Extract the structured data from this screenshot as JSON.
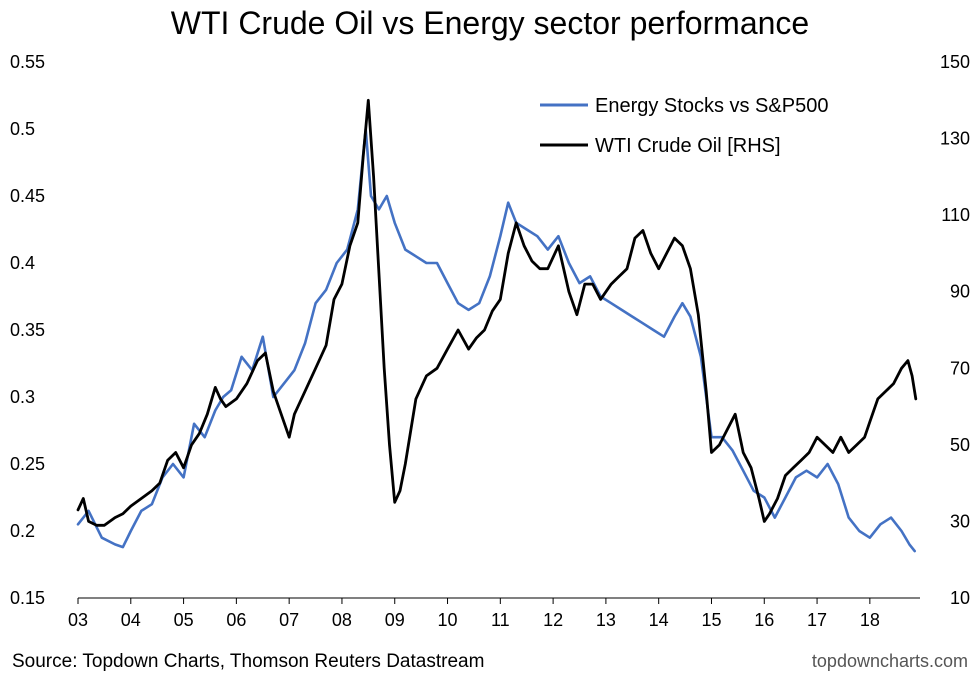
{
  "chart_data": {
    "type": "line",
    "title": "WTI Crude Oil vs Energy sector performance",
    "xlabel": "",
    "ylabel": "",
    "x_ticks": [
      "03",
      "04",
      "05",
      "06",
      "07",
      "08",
      "09",
      "10",
      "11",
      "12",
      "13",
      "14",
      "15",
      "16",
      "17",
      "18"
    ],
    "xlim": [
      2003.0,
      2018.95
    ],
    "ylim_left": [
      0.15,
      0.55
    ],
    "y_ticks_left": [
      "0.15",
      "0.2",
      "0.25",
      "0.3",
      "0.35",
      "0.4",
      "0.45",
      "0.5",
      "0.55"
    ],
    "ylim_right": [
      10,
      150
    ],
    "y_ticks_right": [
      "10",
      "30",
      "50",
      "70",
      "90",
      "110",
      "130",
      "150"
    ],
    "grid": false,
    "legend_position": "top-right",
    "series": [
      {
        "name": "Energy Stocks vs S&P500",
        "axis": "left",
        "color": "#4472c4",
        "x": [
          2003.0,
          2003.2,
          2003.45,
          2003.7,
          2003.85,
          2004.0,
          2004.2,
          2004.4,
          2004.6,
          2004.8,
          2005.0,
          2005.2,
          2005.4,
          2005.6,
          2005.75,
          2005.9,
          2006.1,
          2006.3,
          2006.5,
          2006.7,
          2006.9,
          2007.1,
          2007.3,
          2007.5,
          2007.7,
          2007.9,
          2008.1,
          2008.3,
          2008.45,
          2008.55,
          2008.7,
          2008.85,
          2009.0,
          2009.2,
          2009.4,
          2009.6,
          2009.8,
          2010.0,
          2010.2,
          2010.4,
          2010.6,
          2010.8,
          2011.0,
          2011.15,
          2011.3,
          2011.5,
          2011.7,
          2011.9,
          2012.1,
          2012.3,
          2012.5,
          2012.7,
          2012.9,
          2013.1,
          2013.3,
          2013.5,
          2013.7,
          2013.9,
          2014.1,
          2014.3,
          2014.45,
          2014.6,
          2014.8,
          2015.0,
          2015.2,
          2015.4,
          2015.6,
          2015.8,
          2016.0,
          2016.2,
          2016.4,
          2016.6,
          2016.8,
          2017.0,
          2017.2,
          2017.4,
          2017.6,
          2017.8,
          2018.0,
          2018.2,
          2018.4,
          2018.6,
          2018.75,
          2018.85
        ],
        "y": [
          0.205,
          0.215,
          0.195,
          0.19,
          0.188,
          0.2,
          0.215,
          0.22,
          0.24,
          0.25,
          0.24,
          0.28,
          0.27,
          0.29,
          0.3,
          0.305,
          0.33,
          0.32,
          0.345,
          0.3,
          0.31,
          0.32,
          0.34,
          0.37,
          0.38,
          0.4,
          0.41,
          0.44,
          0.5,
          0.45,
          0.44,
          0.45,
          0.43,
          0.41,
          0.405,
          0.4,
          0.4,
          0.385,
          0.37,
          0.365,
          0.37,
          0.39,
          0.42,
          0.445,
          0.43,
          0.425,
          0.42,
          0.41,
          0.42,
          0.4,
          0.385,
          0.39,
          0.375,
          0.37,
          0.365,
          0.36,
          0.355,
          0.35,
          0.345,
          0.36,
          0.37,
          0.36,
          0.33,
          0.27,
          0.27,
          0.26,
          0.245,
          0.23,
          0.225,
          0.21,
          0.225,
          0.24,
          0.245,
          0.24,
          0.25,
          0.235,
          0.21,
          0.2,
          0.195,
          0.205,
          0.21,
          0.2,
          0.19,
          0.185
        ]
      },
      {
        "name": "WTI Crude Oil [RHS]",
        "axis": "right",
        "color": "#000000",
        "x": [
          2003.0,
          2003.1,
          2003.2,
          2003.35,
          2003.5,
          2003.7,
          2003.85,
          2004.0,
          2004.2,
          2004.4,
          2004.55,
          2004.7,
          2004.85,
          2005.0,
          2005.15,
          2005.3,
          2005.45,
          2005.6,
          2005.7,
          2005.8,
          2006.0,
          2006.2,
          2006.4,
          2006.55,
          2006.7,
          2006.85,
          2007.0,
          2007.1,
          2007.3,
          2007.5,
          2007.7,
          2007.85,
          2008.0,
          2008.15,
          2008.3,
          2008.4,
          2008.5,
          2008.6,
          2008.7,
          2008.8,
          2008.9,
          2009.0,
          2009.1,
          2009.2,
          2009.4,
          2009.6,
          2009.8,
          2010.0,
          2010.2,
          2010.4,
          2010.55,
          2010.7,
          2010.85,
          2011.0,
          2011.15,
          2011.3,
          2011.45,
          2011.6,
          2011.75,
          2011.9,
          2012.1,
          2012.3,
          2012.45,
          2012.6,
          2012.75,
          2012.9,
          2013.1,
          2013.25,
          2013.4,
          2013.55,
          2013.7,
          2013.85,
          2014.0,
          2014.15,
          2014.3,
          2014.45,
          2014.6,
          2014.75,
          2014.9,
          2015.0,
          2015.15,
          2015.3,
          2015.45,
          2015.6,
          2015.75,
          2015.9,
          2016.0,
          2016.1,
          2016.25,
          2016.4,
          2016.55,
          2016.7,
          2016.85,
          2017.0,
          2017.15,
          2017.3,
          2017.45,
          2017.6,
          2017.75,
          2017.9,
          2018.0,
          2018.15,
          2018.3,
          2018.45,
          2018.6,
          2018.72,
          2018.8,
          2018.87
        ],
        "y": [
          33,
          36,
          30,
          29,
          29,
          31,
          32,
          34,
          36,
          38,
          40,
          46,
          48,
          44,
          50,
          53,
          58,
          65,
          62,
          60,
          62,
          66,
          72,
          74,
          64,
          58,
          52,
          58,
          64,
          70,
          76,
          88,
          92,
          102,
          108,
          125,
          140,
          120,
          95,
          70,
          50,
          35,
          38,
          45,
          62,
          68,
          70,
          75,
          80,
          75,
          78,
          80,
          85,
          88,
          100,
          108,
          102,
          98,
          96,
          96,
          102,
          90,
          84,
          92,
          92,
          88,
          92,
          94,
          96,
          104,
          106,
          100,
          96,
          100,
          104,
          102,
          96,
          84,
          64,
          48,
          50,
          54,
          58,
          48,
          44,
          36,
          30,
          32,
          36,
          42,
          44,
          46,
          48,
          52,
          50,
          48,
          52,
          48,
          50,
          52,
          56,
          62,
          64,
          66,
          70,
          72,
          68,
          62
        ]
      }
    ]
  },
  "source": "Source: Topdown Charts, Thomson Reuters Datastream",
  "credit": "topdowncharts.com"
}
